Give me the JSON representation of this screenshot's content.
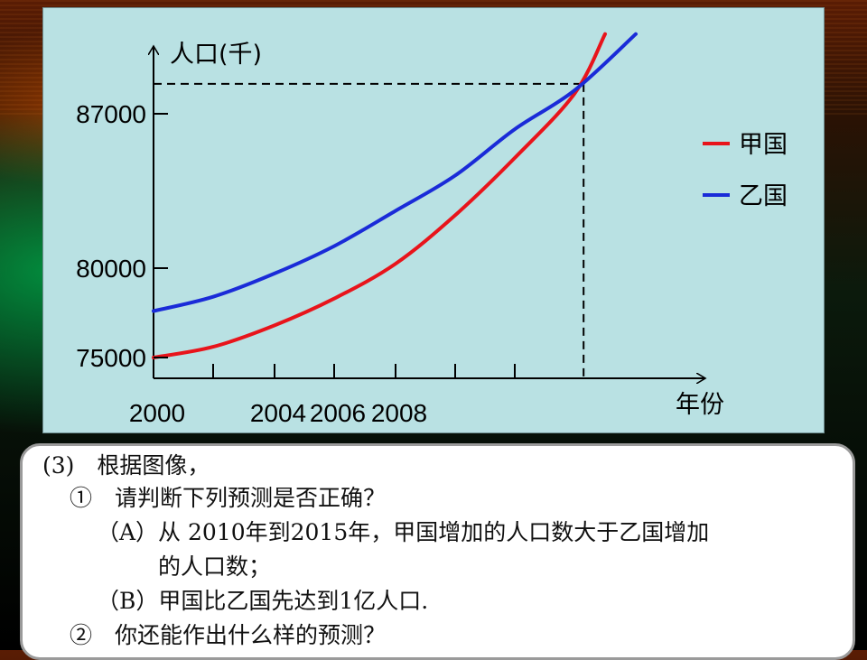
{
  "chart_data": {
    "type": "line",
    "ylabel": "人口(千)",
    "xlabel": "年份",
    "y_ticks": [
      {
        "value": 75000,
        "label": "75000"
      },
      {
        "value": 80000,
        "label": "80000"
      },
      {
        "value": 87000,
        "label": "87000"
      }
    ],
    "x_ticks": [
      {
        "value": 2000,
        "label": "2000"
      },
      {
        "value": 2002,
        "label": ""
      },
      {
        "value": 2004,
        "label": "2004"
      },
      {
        "value": 2006,
        "label": "2006"
      },
      {
        "value": 2008,
        "label": "2008"
      },
      {
        "value": 2010,
        "label": ""
      },
      {
        "value": 2012,
        "label": ""
      }
    ],
    "legend_position": "right",
    "series": [
      {
        "name": "甲国",
        "color": "#e8141b",
        "points": [
          [
            2000,
            75000
          ],
          [
            2002,
            75600
          ],
          [
            2004,
            76800
          ],
          [
            2006,
            78300
          ],
          [
            2008,
            80200
          ],
          [
            2010,
            82400
          ],
          [
            2012,
            85000
          ],
          [
            2014,
            88200
          ],
          [
            2015,
            91800
          ]
        ]
      },
      {
        "name": "乙国",
        "color": "#1a2bd8",
        "points": [
          [
            2000,
            77600
          ],
          [
            2002,
            78400
          ],
          [
            2004,
            79700
          ],
          [
            2006,
            81000
          ],
          [
            2008,
            82600
          ],
          [
            2010,
            84200
          ],
          [
            2012,
            86300
          ],
          [
            2014,
            88400
          ],
          [
            2016,
            91800
          ]
        ]
      }
    ],
    "reference": {
      "x": 2014.3,
      "y": 88800
    }
  },
  "question": {
    "lines": [
      "(3)　根据图像，",
      "①　请判断下列预测是否正确？",
      "（A）从 2010年到2015年，甲国增加的人口数大于乙国增加",
      "的人口数；",
      "（B）甲国比乙国先达到1亿人口.",
      "②　你还能作出什么样的预测？"
    ]
  }
}
